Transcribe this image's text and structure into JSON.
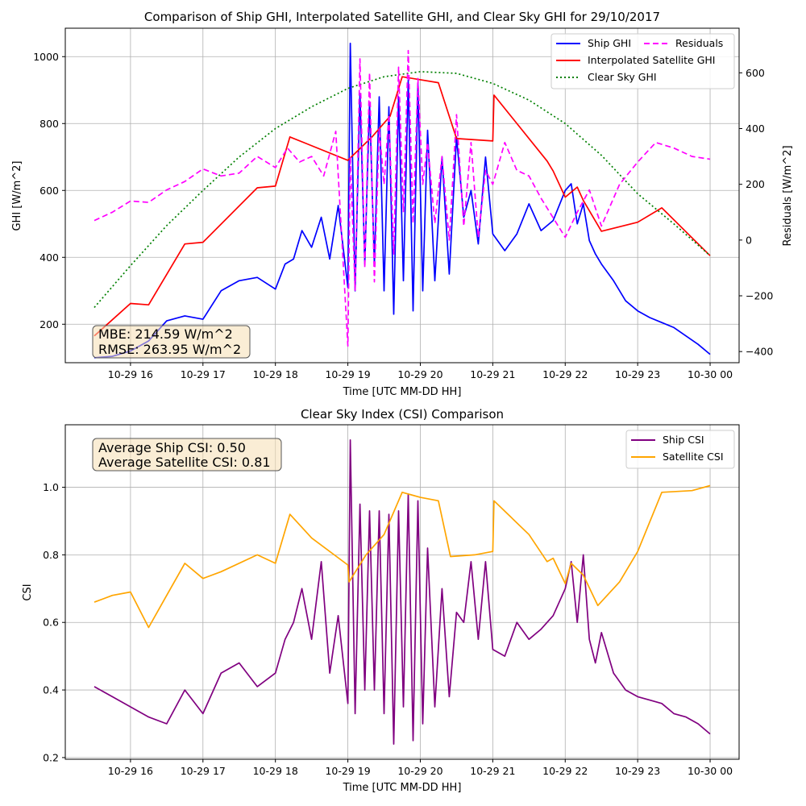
{
  "chart_data": [
    {
      "type": "line",
      "title": "Comparison of Ship GHI, Interpolated Satellite GHI, and Clear Sky GHI for 29/10/2017",
      "xlabel": "Time [UTC MM-DD HH]",
      "ylabel": "GHI [W/m^2]",
      "y2label": "Residuals [W/m^2]",
      "xlim": [
        "2017-10-29 15:06",
        "2017-10-30 00:24"
      ],
      "ylim": [
        85,
        1085
      ],
      "y2lim": [
        -440,
        760
      ],
      "xticks": [
        "2017-10-29 16:00",
        "2017-10-29 17:00",
        "2017-10-29 18:00",
        "2017-10-29 19:00",
        "2017-10-29 20:00",
        "2017-10-29 21:00",
        "2017-10-29 22:00",
        "2017-10-29 23:00",
        "2017-10-30 00:00"
      ],
      "xticklabels": [
        "10-29 16",
        "10-29 17",
        "10-29 18",
        "10-29 19",
        "10-29 20",
        "10-29 21",
        "10-29 22",
        "10-29 23",
        "10-30 00"
      ],
      "yticks": [
        200,
        400,
        600,
        800,
        1000
      ],
      "y2ticks": [
        -400,
        -200,
        0,
        200,
        400,
        600
      ],
      "grid": true,
      "legend_placement": "upper right",
      "annotation": [
        "MBE: 214.59 W/m^2",
        "RMSE: 263.95 W/m^2"
      ],
      "series": [
        {
          "name": "Ship GHI",
          "axis": "left",
          "color": "#0000ff",
          "style": "solid",
          "x": [
            "2017-10-29 15:30",
            "2017-10-29 15:45",
            "2017-10-29 16:00",
            "2017-10-29 16:15",
            "2017-10-29 16:30",
            "2017-10-29 16:45",
            "2017-10-29 17:00",
            "2017-10-29 17:15",
            "2017-10-29 17:30",
            "2017-10-29 17:45",
            "2017-10-29 18:00",
            "2017-10-29 18:08",
            "2017-10-29 18:15",
            "2017-10-29 18:22",
            "2017-10-29 18:30",
            "2017-10-29 18:38",
            "2017-10-29 18:45",
            "2017-10-29 18:52",
            "2017-10-29 19:00",
            "2017-10-29 19:02",
            "2017-10-29 19:06",
            "2017-10-29 19:10",
            "2017-10-29 19:14",
            "2017-10-29 19:18",
            "2017-10-29 19:22",
            "2017-10-29 19:26",
            "2017-10-29 19:30",
            "2017-10-29 19:34",
            "2017-10-29 19:38",
            "2017-10-29 19:42",
            "2017-10-29 19:46",
            "2017-10-29 19:50",
            "2017-10-29 19:54",
            "2017-10-29 19:58",
            "2017-10-29 20:02",
            "2017-10-29 20:06",
            "2017-10-29 20:12",
            "2017-10-29 20:18",
            "2017-10-29 20:24",
            "2017-10-29 20:30",
            "2017-10-29 20:36",
            "2017-10-29 20:42",
            "2017-10-29 20:48",
            "2017-10-29 20:54",
            "2017-10-29 21:00",
            "2017-10-29 21:10",
            "2017-10-29 21:20",
            "2017-10-29 21:30",
            "2017-10-29 21:40",
            "2017-10-29 21:50",
            "2017-10-29 22:00",
            "2017-10-29 22:05",
            "2017-10-29 22:10",
            "2017-10-29 22:15",
            "2017-10-29 22:20",
            "2017-10-29 22:25",
            "2017-10-29 22:30",
            "2017-10-29 22:40",
            "2017-10-29 22:50",
            "2017-10-29 23:00",
            "2017-10-29 23:10",
            "2017-10-29 23:20",
            "2017-10-29 23:30",
            "2017-10-29 23:40",
            "2017-10-29 23:50",
            "2017-10-30 00:00"
          ],
          "y": [
            100,
            104,
            120,
            150,
            210,
            225,
            215,
            300,
            330,
            340,
            305,
            380,
            395,
            480,
            430,
            520,
            395,
            555,
            310,
            1040,
            300,
            890,
            380,
            860,
            380,
            880,
            300,
            850,
            230,
            880,
            330,
            930,
            240,
            920,
            300,
            780,
            330,
            700,
            350,
            760,
            520,
            600,
            440,
            700,
            470,
            420,
            470,
            560,
            480,
            510,
            600,
            620,
            500,
            560,
            450,
            410,
            380,
            330,
            270,
            240,
            220,
            205,
            190,
            165,
            140,
            110
          ]
        },
        {
          "name": "Interpolated Satellite GHI",
          "axis": "left",
          "color": "#ff0000",
          "style": "solid",
          "x": [
            "2017-10-29 15:30",
            "2017-10-29 16:00",
            "2017-10-29 16:15",
            "2017-10-29 16:45",
            "2017-10-29 17:00",
            "2017-10-29 17:45",
            "2017-10-29 18:00",
            "2017-10-29 18:12",
            "2017-10-29 19:00",
            "2017-10-29 19:20",
            "2017-10-29 19:35",
            "2017-10-29 19:45",
            "2017-10-29 20:15",
            "2017-10-29 20:30",
            "2017-10-29 21:00",
            "2017-10-29 21:01",
            "2017-10-29 21:45",
            "2017-10-29 21:50",
            "2017-10-29 22:00",
            "2017-10-29 22:10",
            "2017-10-29 22:15",
            "2017-10-29 22:30",
            "2017-10-29 23:00",
            "2017-10-29 23:20",
            "2017-10-30 00:00"
          ],
          "y": [
            165,
            262,
            258,
            440,
            445,
            608,
            613,
            760,
            690,
            760,
            822,
            940,
            922,
            755,
            748,
            885,
            688,
            658,
            580,
            610,
            570,
            478,
            505,
            548,
            405
          ]
        },
        {
          "name": "Clear Sky GHI",
          "axis": "left",
          "color": "#008000",
          "style": "dotted",
          "x": [
            "2017-10-29 15:30",
            "2017-10-29 16:00",
            "2017-10-29 16:30",
            "2017-10-29 17:00",
            "2017-10-29 17:30",
            "2017-10-29 18:00",
            "2017-10-29 18:30",
            "2017-10-29 19:00",
            "2017-10-29 19:30",
            "2017-10-29 20:00",
            "2017-10-29 20:30",
            "2017-10-29 21:00",
            "2017-10-29 21:30",
            "2017-10-29 22:00",
            "2017-10-29 22:30",
            "2017-10-29 23:00",
            "2017-10-29 23:30",
            "2017-10-30 00:00"
          ],
          "y": [
            250,
            375,
            495,
            600,
            700,
            785,
            850,
            905,
            940,
            955,
            950,
            920,
            870,
            800,
            705,
            590,
            500,
            405
          ]
        },
        {
          "name": "Residuals",
          "axis": "right",
          "color": "#ff00ff",
          "style": "dashed",
          "x": [
            "2017-10-29 15:30",
            "2017-10-29 15:45",
            "2017-10-29 16:00",
            "2017-10-29 16:15",
            "2017-10-29 16:30",
            "2017-10-29 16:45",
            "2017-10-29 17:00",
            "2017-10-29 17:15",
            "2017-10-29 17:30",
            "2017-10-29 17:45",
            "2017-10-29 18:00",
            "2017-10-29 18:10",
            "2017-10-29 18:20",
            "2017-10-29 18:30",
            "2017-10-29 18:40",
            "2017-10-29 18:50",
            "2017-10-29 19:00",
            "2017-10-29 19:02",
            "2017-10-29 19:06",
            "2017-10-29 19:10",
            "2017-10-29 19:14",
            "2017-10-29 19:18",
            "2017-10-29 19:22",
            "2017-10-29 19:26",
            "2017-10-29 19:30",
            "2017-10-29 19:34",
            "2017-10-29 19:38",
            "2017-10-29 19:42",
            "2017-10-29 19:46",
            "2017-10-29 19:50",
            "2017-10-29 19:54",
            "2017-10-29 19:58",
            "2017-10-29 20:02",
            "2017-10-29 20:06",
            "2017-10-29 20:12",
            "2017-10-29 20:18",
            "2017-10-29 20:24",
            "2017-10-29 20:30",
            "2017-10-29 20:36",
            "2017-10-29 20:42",
            "2017-10-29 20:48",
            "2017-10-29 20:54",
            "2017-10-29 21:00",
            "2017-10-29 21:10",
            "2017-10-29 21:20",
            "2017-10-29 21:30",
            "2017-10-29 21:40",
            "2017-10-29 21:50",
            "2017-10-29 22:00",
            "2017-10-29 22:10",
            "2017-10-29 22:20",
            "2017-10-29 22:30",
            "2017-10-29 22:45",
            "2017-10-29 23:00",
            "2017-10-29 23:15",
            "2017-10-29 23:30",
            "2017-10-29 23:45",
            "2017-10-30 00:00"
          ],
          "y": [
            70,
            100,
            140,
            135,
            180,
            210,
            255,
            230,
            240,
            300,
            260,
            330,
            280,
            300,
            230,
            390,
            -380,
            300,
            -180,
            650,
            -100,
            600,
            -150,
            400,
            200,
            450,
            -50,
            620,
            100,
            680,
            60,
            580,
            200,
            350,
            60,
            300,
            0,
            450,
            50,
            350,
            10,
            250,
            200,
            350,
            250,
            230,
            150,
            80,
            10,
            100,
            180,
            50,
            200,
            280,
            350,
            330,
            300,
            290
          ]
        }
      ]
    },
    {
      "type": "line",
      "title": "Clear Sky Index (CSI) Comparison",
      "xlabel": "Time [UTC MM-DD HH]",
      "ylabel": "CSI",
      "xlim": [
        "2017-10-29 15:06",
        "2017-10-30 00:24"
      ],
      "ylim": [
        0.195,
        1.185
      ],
      "xticks": [
        "2017-10-29 16:00",
        "2017-10-29 17:00",
        "2017-10-29 18:00",
        "2017-10-29 19:00",
        "2017-10-29 20:00",
        "2017-10-29 21:00",
        "2017-10-29 22:00",
        "2017-10-29 23:00",
        "2017-10-30 00:00"
      ],
      "xticklabels": [
        "10-29 16",
        "10-29 17",
        "10-29 18",
        "10-29 19",
        "10-29 20",
        "10-29 21",
        "10-29 22",
        "10-29 23",
        "10-30 00"
      ],
      "yticks": [
        0.2,
        0.4,
        0.6,
        0.8,
        1.0
      ],
      "yticklabels": [
        "0.2",
        "0.4",
        "0.6",
        "0.8",
        "1.0"
      ],
      "grid": true,
      "legend_placement": "upper right",
      "annotation": [
        "Average Ship CSI: 0.50",
        "Average Satellite CSI: 0.81"
      ],
      "series": [
        {
          "name": "Ship CSI",
          "color": "#800080",
          "style": "solid",
          "x": [
            "2017-10-29 15:30",
            "2017-10-29 15:45",
            "2017-10-29 16:00",
            "2017-10-29 16:15",
            "2017-10-29 16:30",
            "2017-10-29 16:45",
            "2017-10-29 17:00",
            "2017-10-29 17:15",
            "2017-10-29 17:30",
            "2017-10-29 17:45",
            "2017-10-29 18:00",
            "2017-10-29 18:08",
            "2017-10-29 18:15",
            "2017-10-29 18:22",
            "2017-10-29 18:30",
            "2017-10-29 18:38",
            "2017-10-29 18:45",
            "2017-10-29 18:52",
            "2017-10-29 19:00",
            "2017-10-29 19:02",
            "2017-10-29 19:06",
            "2017-10-29 19:10",
            "2017-10-29 19:14",
            "2017-10-29 19:18",
            "2017-10-29 19:22",
            "2017-10-29 19:26",
            "2017-10-29 19:30",
            "2017-10-29 19:34",
            "2017-10-29 19:38",
            "2017-10-29 19:42",
            "2017-10-29 19:46",
            "2017-10-29 19:50",
            "2017-10-29 19:54",
            "2017-10-29 19:58",
            "2017-10-29 20:02",
            "2017-10-29 20:06",
            "2017-10-29 20:12",
            "2017-10-29 20:18",
            "2017-10-29 20:24",
            "2017-10-29 20:30",
            "2017-10-29 20:36",
            "2017-10-29 20:42",
            "2017-10-29 20:48",
            "2017-10-29 20:54",
            "2017-10-29 21:00",
            "2017-10-29 21:10",
            "2017-10-29 21:20",
            "2017-10-29 21:30",
            "2017-10-29 21:40",
            "2017-10-29 21:50",
            "2017-10-29 22:00",
            "2017-10-29 22:05",
            "2017-10-29 22:10",
            "2017-10-29 22:15",
            "2017-10-29 22:20",
            "2017-10-29 22:25",
            "2017-10-29 22:30",
            "2017-10-29 22:40",
            "2017-10-29 22:50",
            "2017-10-29 23:00",
            "2017-10-29 23:10",
            "2017-10-29 23:20",
            "2017-10-29 23:30",
            "2017-10-29 23:40",
            "2017-10-29 23:50",
            "2017-10-30 00:00"
          ],
          "y": [
            0.41,
            0.38,
            0.35,
            0.32,
            0.3,
            0.4,
            0.33,
            0.45,
            0.48,
            0.41,
            0.45,
            0.55,
            0.6,
            0.7,
            0.55,
            0.78,
            0.45,
            0.62,
            0.36,
            1.14,
            0.33,
            0.95,
            0.4,
            0.93,
            0.4,
            0.93,
            0.33,
            0.92,
            0.24,
            0.93,
            0.35,
            0.98,
            0.25,
            0.96,
            0.3,
            0.82,
            0.35,
            0.7,
            0.38,
            0.63,
            0.6,
            0.78,
            0.55,
            0.78,
            0.52,
            0.5,
            0.6,
            0.55,
            0.58,
            0.62,
            0.7,
            0.78,
            0.6,
            0.8,
            0.55,
            0.48,
            0.57,
            0.45,
            0.4,
            0.38,
            0.37,
            0.36,
            0.33,
            0.32,
            0.3,
            0.27
          ]
        },
        {
          "name": "Satellite CSI",
          "color": "#ffa500",
          "style": "solid",
          "x": [
            "2017-10-29 15:30",
            "2017-10-29 15:45",
            "2017-10-29 16:00",
            "2017-10-29 16:15",
            "2017-10-29 16:30",
            "2017-10-29 16:45",
            "2017-10-29 17:00",
            "2017-10-29 17:15",
            "2017-10-29 17:45",
            "2017-10-29 18:00",
            "2017-10-29 18:12",
            "2017-10-29 18:30",
            "2017-10-29 19:00",
            "2017-10-29 19:01",
            "2017-10-29 19:15",
            "2017-10-29 19:30",
            "2017-10-29 19:45",
            "2017-10-29 20:00",
            "2017-10-29 20:15",
            "2017-10-29 20:25",
            "2017-10-29 20:45",
            "2017-10-29 21:00",
            "2017-10-29 21:01",
            "2017-10-29 21:30",
            "2017-10-29 21:45",
            "2017-10-29 21:50",
            "2017-10-29 22:00",
            "2017-10-29 22:05",
            "2017-10-29 22:15",
            "2017-10-29 22:27",
            "2017-10-29 22:45",
            "2017-10-29 23:00",
            "2017-10-29 23:20",
            "2017-10-29 23:45",
            "2017-10-30 00:00"
          ],
          "y": [
            0.66,
            0.68,
            0.69,
            0.585,
            0.68,
            0.775,
            0.73,
            0.75,
            0.8,
            0.775,
            0.92,
            0.85,
            0.77,
            0.72,
            0.8,
            0.86,
            0.985,
            0.97,
            0.96,
            0.795,
            0.8,
            0.81,
            0.96,
            0.86,
            0.78,
            0.79,
            0.715,
            0.775,
            0.74,
            0.65,
            0.72,
            0.81,
            0.985,
            0.99,
            1.005
          ]
        }
      ]
    }
  ]
}
